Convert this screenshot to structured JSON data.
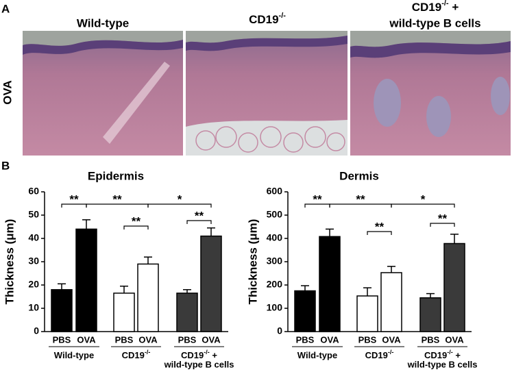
{
  "panel_a": {
    "label": "A",
    "row_label": "OVA",
    "columns": [
      {
        "text": "Wild-type"
      },
      {
        "base": "CD19",
        "sup": "-/-"
      },
      {
        "base": "CD19",
        "sup": "-/-",
        "suffix": " +",
        "line2": "wild-type B cells"
      }
    ]
  },
  "panel_b_label": "B",
  "chart_data": [
    {
      "type": "bar",
      "title": "Epidermis",
      "ylabel": "Thickness (μm)",
      "categories": [
        "PBS",
        "OVA",
        "PBS",
        "OVA",
        "PBS",
        "OVA"
      ],
      "groups": [
        {
          "name": "Wild-type"
        },
        {
          "name": "CD19",
          "sup": "-/-"
        },
        {
          "name": "CD19",
          "sup": "-/-",
          "suffix": " +",
          "line2": "wild-type B cells"
        }
      ],
      "values": [
        18,
        44,
        16.5,
        29,
        16.5,
        41
      ],
      "errors": [
        2.5,
        4,
        3,
        3,
        1.5,
        3.5
      ],
      "colors": [
        "#000000",
        "#000000",
        "#ffffff",
        "#ffffff",
        "#3a3a3a",
        "#3a3a3a"
      ],
      "ylim": [
        0,
        60
      ],
      "yticks": [
        0,
        10,
        20,
        30,
        40,
        50,
        60
      ],
      "significance": [
        "**",
        "**",
        "*",
        "**",
        "**"
      ]
    },
    {
      "type": "bar",
      "title": "Dermis",
      "ylabel": "Thickness (μm)",
      "categories": [
        "PBS",
        "OVA",
        "PBS",
        "OVA",
        "PBS",
        "OVA"
      ],
      "groups": [
        {
          "name": "Wild-type"
        },
        {
          "name": "CD19",
          "sup": "-/-"
        },
        {
          "name": "CD19",
          "sup": "-/-",
          "suffix": " +",
          "line2": "wild-type B cells"
        }
      ],
      "values": [
        175,
        408,
        153,
        253,
        145,
        378
      ],
      "errors": [
        22,
        32,
        35,
        27,
        18,
        40
      ],
      "colors": [
        "#000000",
        "#000000",
        "#ffffff",
        "#ffffff",
        "#3a3a3a",
        "#3a3a3a"
      ],
      "ylim": [
        0,
        600
      ],
      "yticks": [
        0,
        100,
        200,
        300,
        400,
        500,
        600
      ],
      "significance": [
        "**",
        "**",
        "*",
        "**",
        "**"
      ]
    }
  ]
}
